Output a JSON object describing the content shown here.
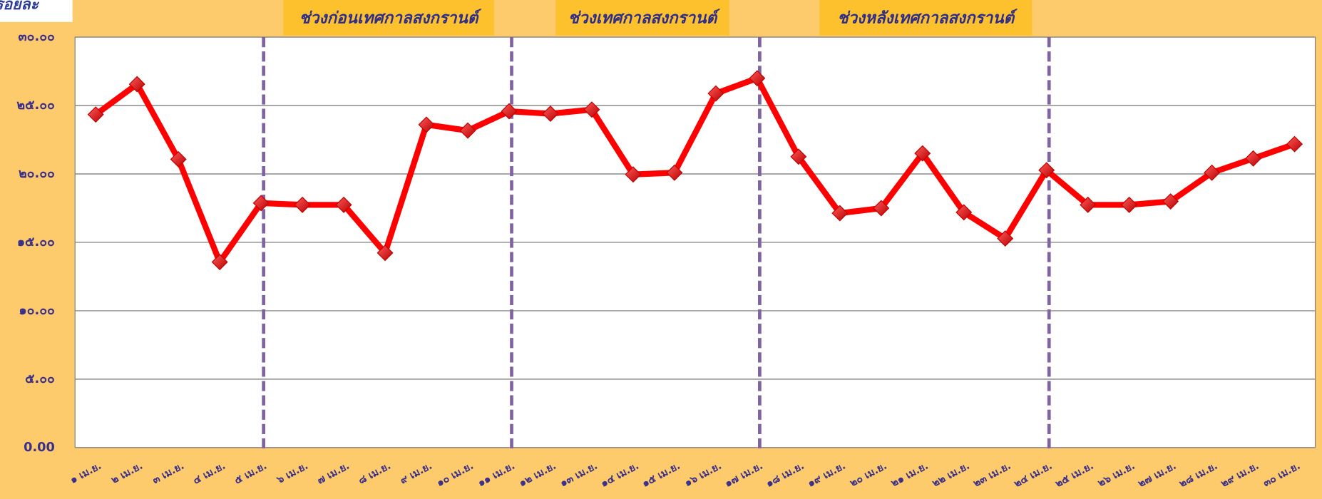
{
  "chart_data": {
    "type": "line",
    "title": "ร้อยละ",
    "annotations": [
      "ช่วงก่อนเทศกาลสงกรานต์",
      "ช่วงเทศกาลสงกรานต์",
      "ช่วงหลังเทศกาลสงกรานต์"
    ],
    "categories": [
      "๑ เม.ย.",
      "๒ เม.ย.",
      "๓ เม.ย.",
      "๔ เม.ย.",
      "๕ เม.ย.",
      "๖ เม.ย.",
      "๗ เม.ย.",
      "๘ เม.ย.",
      "๙ เม.ย.",
      "๑๐ เม.ย.",
      "๑๑ เม.ย.",
      "๑๒ เม.ย.",
      "๑๓ เม.ย.",
      "๑๔ เม.ย.",
      "๑๕ เม.ย.",
      "๑๖ เม.ย.",
      "๑๗ เม.ย.",
      "๑๘ เม.ย.",
      "๑๙ เม.ย.",
      "๒๐ เม.ย.",
      "๒๑ เม.ย.",
      "๒๒ เม.ย.",
      "๒๓ เม.ย.",
      "๒๔ เม.ย.",
      "๒๕ เม.ย.",
      "๒๖ เม.ย.",
      "๒๗ เม.ย.",
      "๒๘ เม.ย.",
      "๒๙ เม.ย.",
      "๓๐ เม.ย."
    ],
    "series": [
      {
        "color": "#ff0000",
        "values": [
          24.34,
          26.56,
          21.07,
          13.56,
          17.87,
          17.74,
          17.74,
          14.23,
          23.6,
          23.17,
          24.58,
          24.4,
          24.7,
          19.96,
          20.09,
          25.88,
          26.99,
          21.26,
          17.13,
          17.5,
          21.5,
          17.19,
          15.28,
          20.27,
          17.74,
          17.74,
          17.99,
          20.09,
          21.13,
          22.18
        ]
      }
    ],
    "ylim": [
      0,
      30
    ],
    "yticks": [
      {
        "value": 0,
        "label": "0.00"
      },
      {
        "value": 5,
        "label": "๕.๐๐"
      },
      {
        "value": 10,
        "label": "๑๐.๐๐"
      },
      {
        "value": 15,
        "label": "๑๕.๐๐"
      },
      {
        "value": 20,
        "label": "๒๐.๐๐"
      },
      {
        "value": 25,
        "label": "๒๕.๐๐"
      },
      {
        "value": 30,
        "label": "๓๐.๐๐"
      }
    ],
    "grid": true
  }
}
